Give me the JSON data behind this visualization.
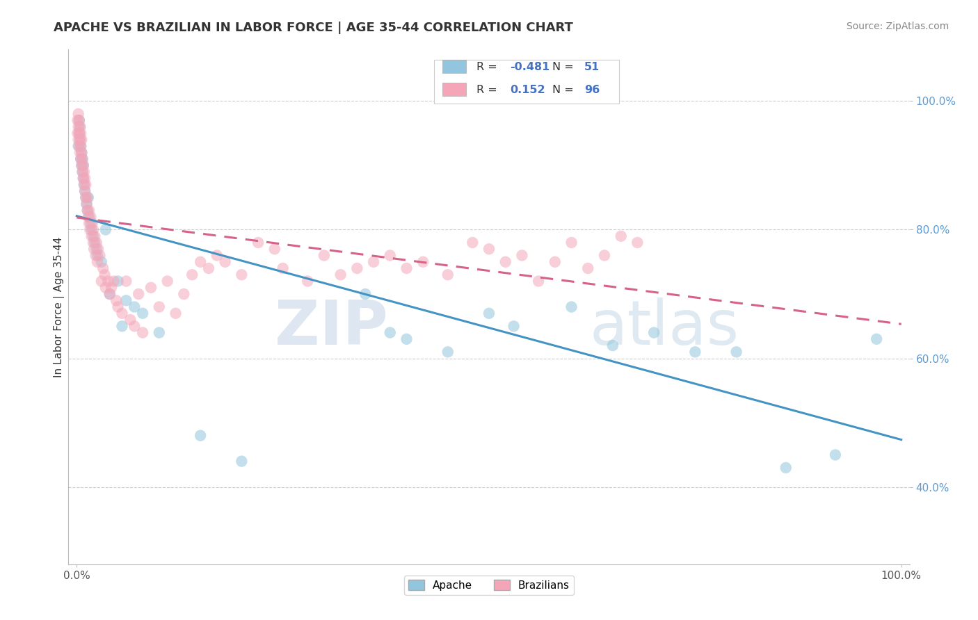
{
  "title": "APACHE VS BRAZILIAN IN LABOR FORCE | AGE 35-44 CORRELATION CHART",
  "source": "Source: ZipAtlas.com",
  "ylabel": "In Labor Force | Age 35-44",
  "xlim": [
    -0.01,
    1.01
  ],
  "ylim": [
    0.28,
    1.08
  ],
  "yticks": [
    0.4,
    0.6,
    0.8,
    1.0
  ],
  "ytick_labels": [
    "40.0%",
    "60.0%",
    "80.0%",
    "100.0%"
  ],
  "xtick_positions": [
    0.0,
    0.5,
    1.0
  ],
  "xtick_labels": [
    "0.0%",
    "",
    "100.0%"
  ],
  "apache_R": -0.481,
  "apache_N": 51,
  "brazilian_R": 0.152,
  "brazilian_N": 96,
  "apache_color": "#92c5de",
  "brazilian_color": "#f4a6b8",
  "apache_line_color": "#4393c3",
  "brazilian_line_color": "#d6628a",
  "background_color": "#ffffff",
  "watermark_zip": "ZIP",
  "watermark_atlas": "atlas",
  "title_fontsize": 13,
  "apache_x": [
    0.002,
    0.003,
    0.003,
    0.004,
    0.004,
    0.005,
    0.005,
    0.006,
    0.006,
    0.007,
    0.007,
    0.008,
    0.008,
    0.009,
    0.01,
    0.011,
    0.012,
    0.013,
    0.014,
    0.015,
    0.017,
    0.018,
    0.02,
    0.022,
    0.024,
    0.025,
    0.03,
    0.035,
    0.04,
    0.05,
    0.055,
    0.06,
    0.07,
    0.08,
    0.1,
    0.15,
    0.2,
    0.35,
    0.38,
    0.4,
    0.45,
    0.5,
    0.53,
    0.6,
    0.65,
    0.7,
    0.75,
    0.8,
    0.86,
    0.92,
    0.97
  ],
  "apache_y": [
    0.93,
    0.97,
    0.95,
    0.94,
    0.96,
    0.91,
    0.93,
    0.9,
    0.92,
    0.89,
    0.91,
    0.88,
    0.9,
    0.87,
    0.86,
    0.85,
    0.84,
    0.83,
    0.85,
    0.82,
    0.81,
    0.8,
    0.79,
    0.78,
    0.77,
    0.76,
    0.75,
    0.8,
    0.7,
    0.72,
    0.65,
    0.69,
    0.68,
    0.67,
    0.64,
    0.48,
    0.44,
    0.7,
    0.64,
    0.63,
    0.61,
    0.67,
    0.65,
    0.68,
    0.62,
    0.64,
    0.61,
    0.61,
    0.43,
    0.45,
    0.63
  ],
  "brazilian_x": [
    0.001,
    0.001,
    0.002,
    0.002,
    0.002,
    0.003,
    0.003,
    0.003,
    0.004,
    0.004,
    0.004,
    0.005,
    0.005,
    0.005,
    0.006,
    0.006,
    0.006,
    0.007,
    0.007,
    0.008,
    0.008,
    0.009,
    0.009,
    0.01,
    0.01,
    0.011,
    0.011,
    0.012,
    0.013,
    0.013,
    0.014,
    0.015,
    0.015,
    0.016,
    0.017,
    0.018,
    0.019,
    0.02,
    0.02,
    0.021,
    0.022,
    0.023,
    0.024,
    0.025,
    0.026,
    0.028,
    0.03,
    0.032,
    0.034,
    0.035,
    0.038,
    0.04,
    0.042,
    0.045,
    0.048,
    0.05,
    0.055,
    0.06,
    0.065,
    0.07,
    0.075,
    0.08,
    0.09,
    0.1,
    0.11,
    0.12,
    0.13,
    0.14,
    0.15,
    0.16,
    0.17,
    0.18,
    0.2,
    0.22,
    0.24,
    0.25,
    0.28,
    0.3,
    0.32,
    0.34,
    0.36,
    0.38,
    0.4,
    0.42,
    0.45,
    0.48,
    0.5,
    0.52,
    0.54,
    0.56,
    0.58,
    0.6,
    0.62,
    0.64,
    0.66,
    0.68
  ],
  "brazilian_y": [
    0.97,
    0.95,
    0.96,
    0.98,
    0.94,
    0.93,
    0.95,
    0.97,
    0.92,
    0.94,
    0.96,
    0.91,
    0.93,
    0.95,
    0.9,
    0.92,
    0.94,
    0.89,
    0.91,
    0.88,
    0.9,
    0.87,
    0.89,
    0.86,
    0.88,
    0.85,
    0.87,
    0.84,
    0.83,
    0.85,
    0.82,
    0.81,
    0.83,
    0.8,
    0.82,
    0.79,
    0.81,
    0.78,
    0.8,
    0.77,
    0.79,
    0.76,
    0.78,
    0.75,
    0.77,
    0.76,
    0.72,
    0.74,
    0.73,
    0.71,
    0.72,
    0.7,
    0.71,
    0.72,
    0.69,
    0.68,
    0.67,
    0.72,
    0.66,
    0.65,
    0.7,
    0.64,
    0.71,
    0.68,
    0.72,
    0.67,
    0.7,
    0.73,
    0.75,
    0.74,
    0.76,
    0.75,
    0.73,
    0.78,
    0.77,
    0.74,
    0.72,
    0.76,
    0.73,
    0.74,
    0.75,
    0.76,
    0.74,
    0.75,
    0.73,
    0.78,
    0.77,
    0.75,
    0.76,
    0.72,
    0.75,
    0.78,
    0.74,
    0.76,
    0.79,
    0.78
  ]
}
